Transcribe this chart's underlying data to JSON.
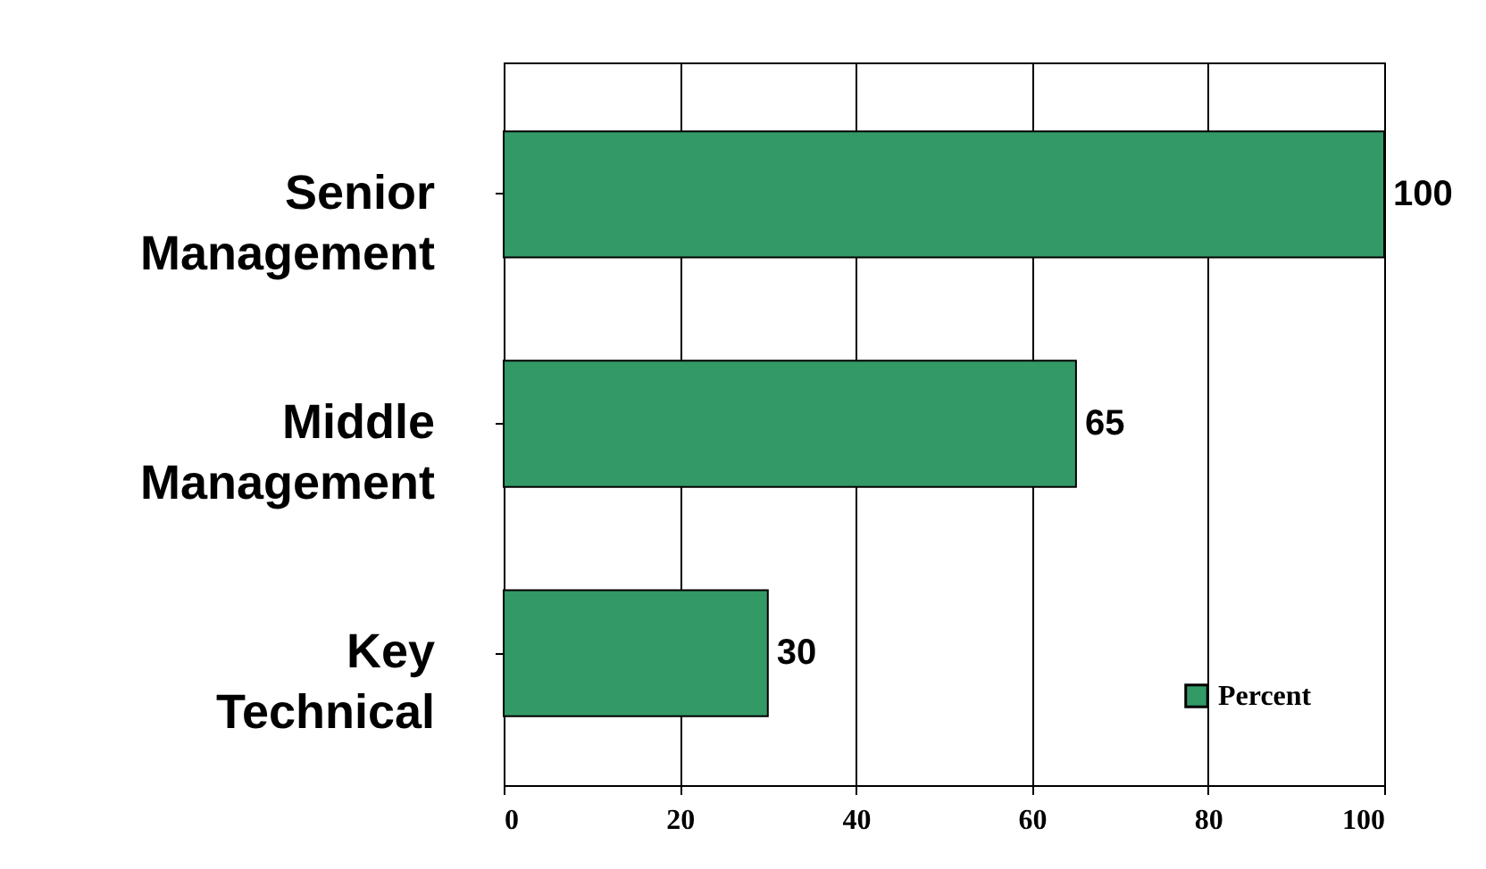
{
  "chart_data": {
    "type": "bar",
    "orientation": "horizontal",
    "categories": [
      "Senior Management",
      "Middle Management",
      "Key Technical"
    ],
    "series": [
      {
        "name": "Percent",
        "color": "#339966",
        "values": [
          100,
          65,
          30
        ]
      }
    ],
    "xlim": [
      0,
      100
    ],
    "xticks": [
      0,
      20,
      40,
      60,
      80,
      100
    ],
    "grid": "x",
    "legend": "bottom right",
    "data_labels": true
  }
}
